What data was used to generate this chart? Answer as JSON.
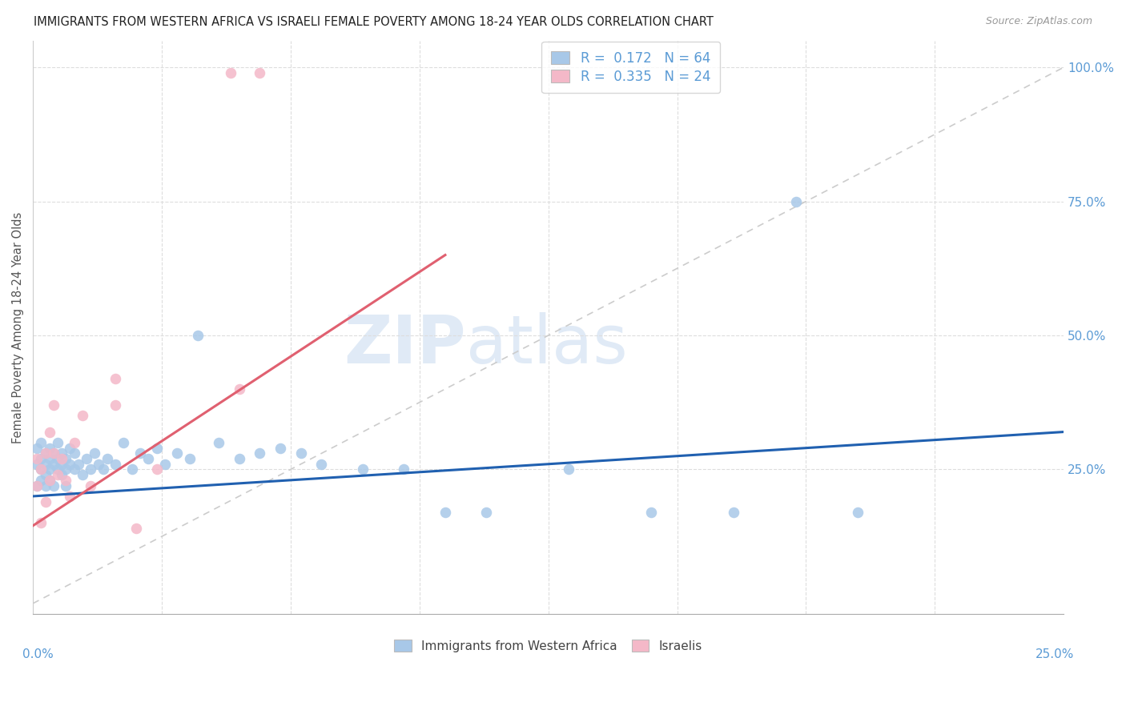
{
  "title": "IMMIGRANTS FROM WESTERN AFRICA VS ISRAELI FEMALE POVERTY AMONG 18-24 YEAR OLDS CORRELATION CHART",
  "source": "Source: ZipAtlas.com",
  "ylabel": "Female Poverty Among 18-24 Year Olds",
  "right_yticklabels": [
    "25.0%",
    "50.0%",
    "75.0%",
    "100.0%"
  ],
  "right_ytick_vals": [
    0.25,
    0.5,
    0.75,
    1.0
  ],
  "blue_color": "#a8c8e8",
  "pink_color": "#f4b8c8",
  "blue_line_color": "#2060b0",
  "pink_line_color": "#e06070",
  "axis_color": "#5b9bd5",
  "xmin": 0.0,
  "xmax": 0.25,
  "ymin": -0.02,
  "ymax": 1.05,
  "blue_line_x0": 0.0,
  "blue_line_y0": 0.2,
  "blue_line_x1": 0.25,
  "blue_line_y1": 0.32,
  "pink_line_x0": 0.0,
  "pink_line_y0": 0.145,
  "pink_line_x1": 0.1,
  "pink_line_y1": 0.65,
  "blue_x": [
    0.001,
    0.001,
    0.001,
    0.002,
    0.002,
    0.002,
    0.002,
    0.003,
    0.003,
    0.003,
    0.003,
    0.004,
    0.004,
    0.004,
    0.004,
    0.005,
    0.005,
    0.005,
    0.006,
    0.006,
    0.006,
    0.007,
    0.007,
    0.007,
    0.008,
    0.008,
    0.008,
    0.009,
    0.009,
    0.01,
    0.01,
    0.011,
    0.012,
    0.013,
    0.014,
    0.015,
    0.016,
    0.017,
    0.018,
    0.02,
    0.022,
    0.024,
    0.026,
    0.028,
    0.03,
    0.032,
    0.035,
    0.038,
    0.04,
    0.045,
    0.05,
    0.055,
    0.06,
    0.065,
    0.07,
    0.08,
    0.09,
    0.1,
    0.11,
    0.13,
    0.15,
    0.17,
    0.185,
    0.2
  ],
  "blue_y": [
    0.26,
    0.22,
    0.29,
    0.25,
    0.27,
    0.23,
    0.3,
    0.26,
    0.28,
    0.22,
    0.24,
    0.27,
    0.25,
    0.29,
    0.23,
    0.26,
    0.28,
    0.22,
    0.27,
    0.25,
    0.3,
    0.26,
    0.24,
    0.28,
    0.25,
    0.27,
    0.22,
    0.26,
    0.29,
    0.25,
    0.28,
    0.26,
    0.24,
    0.27,
    0.25,
    0.28,
    0.26,
    0.25,
    0.27,
    0.26,
    0.3,
    0.25,
    0.28,
    0.27,
    0.29,
    0.26,
    0.28,
    0.27,
    0.5,
    0.3,
    0.27,
    0.28,
    0.29,
    0.28,
    0.26,
    0.25,
    0.25,
    0.17,
    0.17,
    0.25,
    0.17,
    0.17,
    0.75,
    0.17
  ],
  "pink_x": [
    0.001,
    0.001,
    0.002,
    0.002,
    0.003,
    0.003,
    0.004,
    0.004,
    0.005,
    0.005,
    0.006,
    0.007,
    0.008,
    0.009,
    0.01,
    0.012,
    0.014,
    0.02,
    0.025,
    0.03,
    0.048,
    0.055,
    0.02,
    0.05
  ],
  "pink_y": [
    0.27,
    0.22,
    0.25,
    0.15,
    0.28,
    0.19,
    0.32,
    0.23,
    0.28,
    0.37,
    0.24,
    0.27,
    0.23,
    0.2,
    0.3,
    0.35,
    0.22,
    0.42,
    0.14,
    0.25,
    0.99,
    0.99,
    0.37,
    0.4
  ]
}
